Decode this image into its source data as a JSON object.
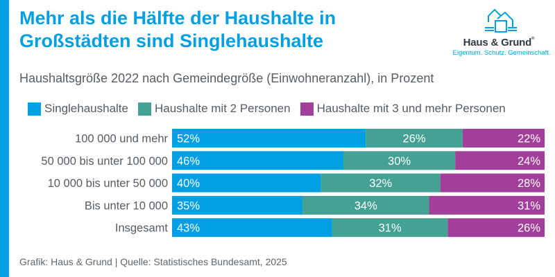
{
  "title_line1": "Mehr als die Hälfte der Haushalte in",
  "title_line2": "Großstädten sind Singlehaushalte",
  "subtitle": "Haushaltsgröße 2022 nach Gemeindegröße (Einwohneranzahl), in Prozent",
  "logo": {
    "icon": "house-logo-icon",
    "name": "Haus & Grund",
    "registered": "®",
    "tagline": "Eigentum. Schutz. Gemeinschaft."
  },
  "footer": "Grafik: Haus & Grund | Quelle: Statistisches Bundesamt, 2025",
  "colors": {
    "accent": "#009fe3",
    "single": "#009fe3",
    "two": "#45a193",
    "three": "#a23f9b"
  },
  "chart_data": {
    "type": "bar",
    "orientation": "horizontal",
    "stacked": true,
    "title": "Mehr als die Hälfte der Haushalte in Großstädten sind Singlehaushalte",
    "subtitle": "Haushaltsgröße 2022 nach Gemeindegröße (Einwohneranzahl), in Prozent",
    "xlabel": "",
    "ylabel": "",
    "xlim": [
      0,
      100
    ],
    "grid": false,
    "legend_position": "top-left",
    "categories": [
      "100 000 und mehr",
      "50 000 bis unter 100 000",
      "10 000 bis unter 50 000",
      "Bis unter 10 000",
      "Insgesamt"
    ],
    "series": [
      {
        "name": "Singlehaushalte",
        "color": "#009fe3",
        "values": [
          52,
          46,
          40,
          35,
          43
        ],
        "label_align": "left"
      },
      {
        "name": "Haushalte mit 2 Personen",
        "color": "#45a193",
        "values": [
          26,
          30,
          32,
          34,
          31
        ],
        "label_align": "center"
      },
      {
        "name": "Haushalte mit 3 und mehr Personen",
        "color": "#a23f9b",
        "values": [
          22,
          24,
          28,
          31,
          26
        ],
        "label_align": "right"
      }
    ],
    "value_suffix": "%"
  }
}
